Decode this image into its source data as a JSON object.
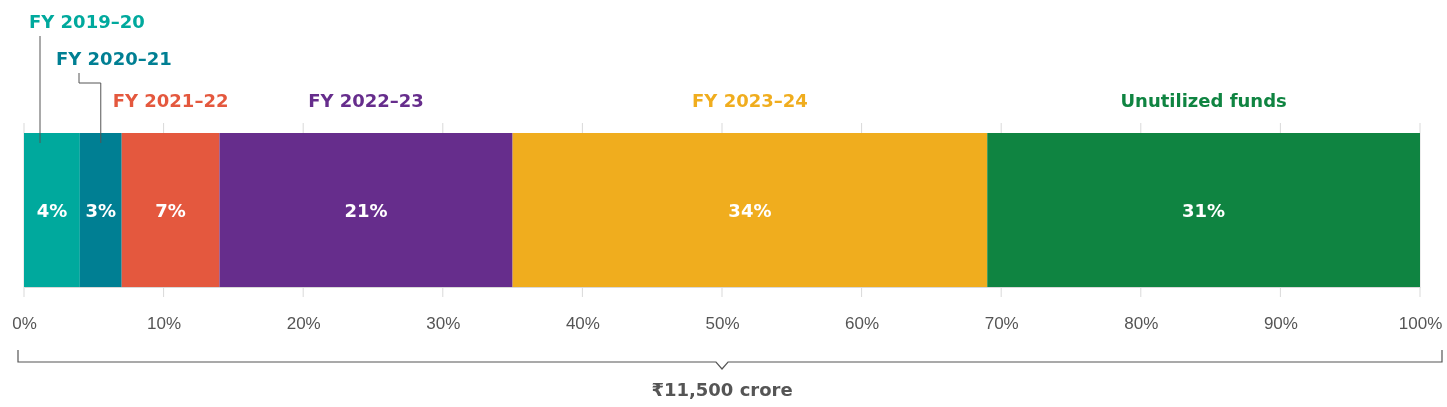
{
  "chart_data": {
    "type": "bar",
    "orientation": "horizontal",
    "stacked": true,
    "categories": [
      null
    ],
    "series": [
      {
        "name": "FY 2019–20",
        "color": "#00a99d",
        "values": [
          4
        ],
        "value_labels": [
          "4%"
        ]
      },
      {
        "name": "FY 2020–21",
        "color": "#007f93",
        "values": [
          3
        ],
        "value_labels": [
          "3%"
        ]
      },
      {
        "name": "FY 2021–22",
        "color": "#e4583e",
        "values": [
          7
        ],
        "value_labels": [
          "7%"
        ]
      },
      {
        "name": "FY 2022–23",
        "color": "#662d8c",
        "values": [
          21
        ],
        "value_labels": [
          "21%"
        ]
      },
      {
        "name": "FY 2023–24",
        "color": "#f0ad1e",
        "values": [
          34
        ],
        "value_labels": [
          "34%"
        ]
      },
      {
        "name": "Unutilized funds",
        "color": "#0f8441",
        "values": [
          31
        ],
        "value_labels": [
          "31%"
        ]
      }
    ],
    "xlim": [
      0,
      100
    ],
    "xticks": [
      {
        "value": 0,
        "label": "0%"
      },
      {
        "value": 10,
        "label": "10%"
      },
      {
        "value": 20,
        "label": "20%"
      },
      {
        "value": 30,
        "label": "30%"
      },
      {
        "value": 40,
        "label": "40%"
      },
      {
        "value": 50,
        "label": "50%"
      },
      {
        "value": 60,
        "label": "60%"
      },
      {
        "value": 70,
        "label": "70%"
      },
      {
        "value": 80,
        "label": "80%"
      },
      {
        "value": 90,
        "label": "90%"
      },
      {
        "value": 100,
        "label": "100%"
      }
    ],
    "tick_labels": "x",
    "grid": "x",
    "annotations": [
      "₹11,500 crore"
    ]
  }
}
